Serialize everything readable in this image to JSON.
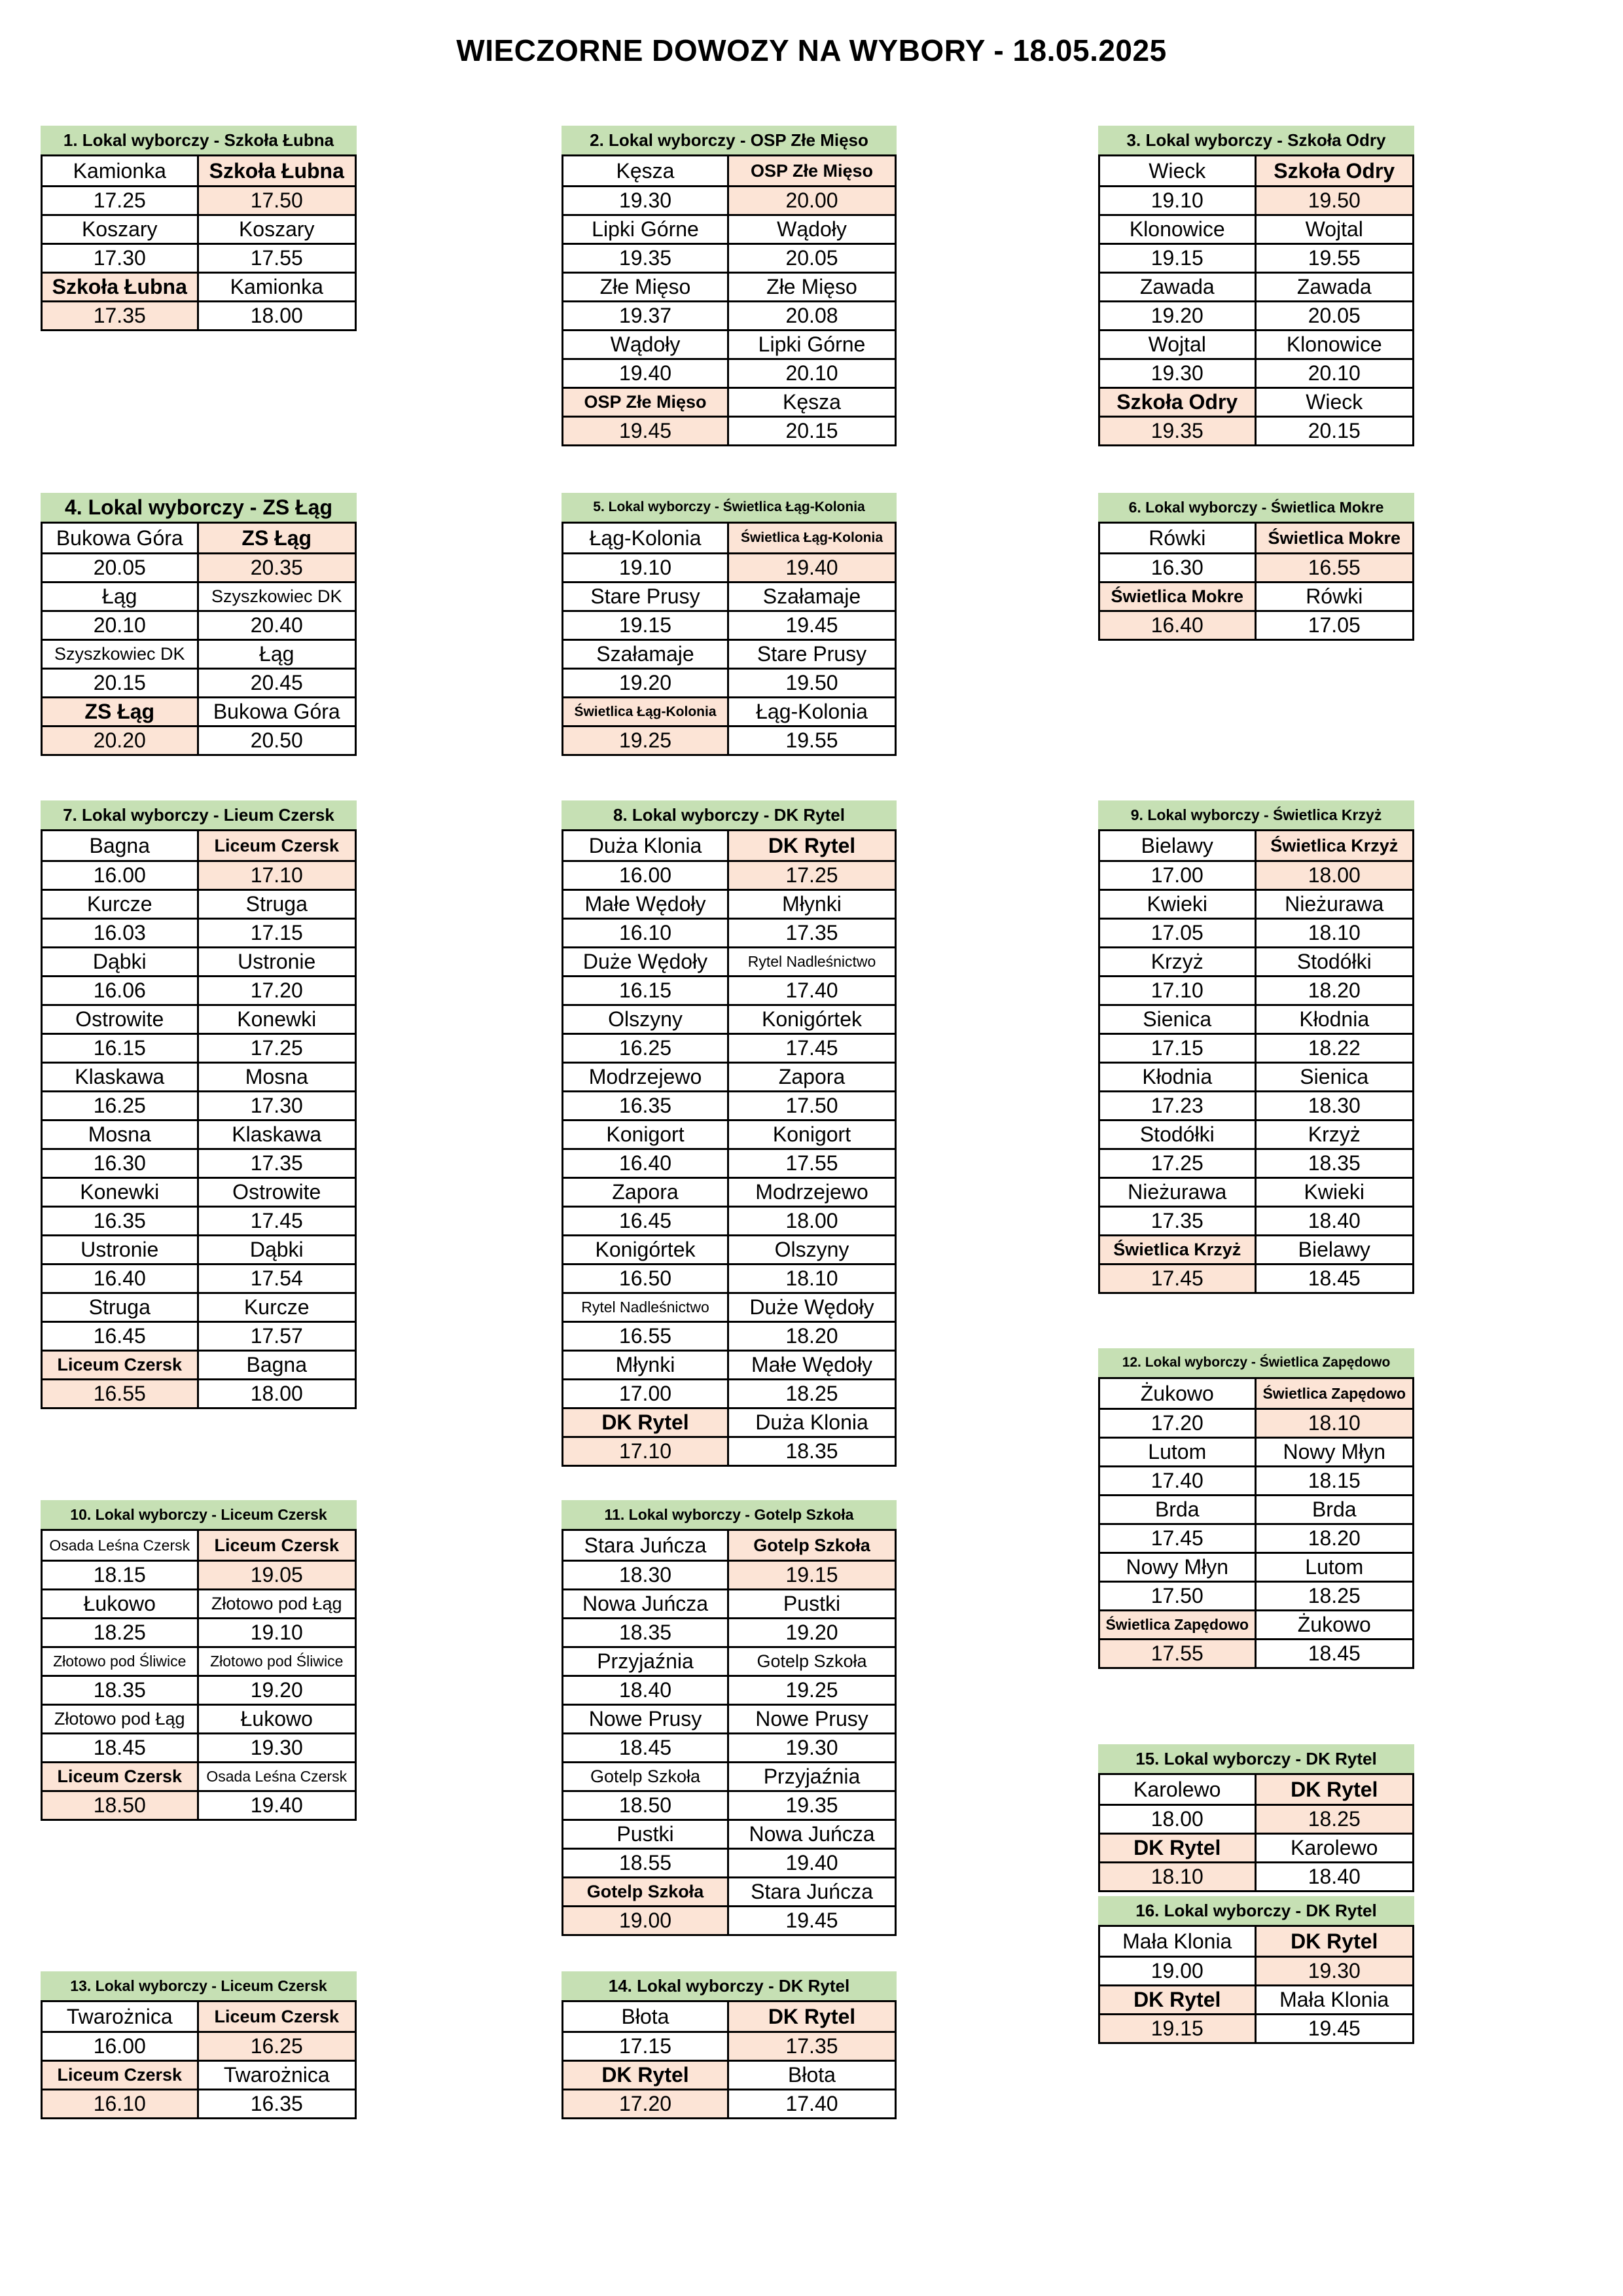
{
  "page": {
    "title": "WIECZORNE DOWOZY NA WYBORY - 18.05.2025"
  },
  "colors": {
    "header_green": "#c6e0b4",
    "highlight_pink": "#fce4d6",
    "border": "#000000",
    "text": "#000000",
    "background": "#ffffff"
  },
  "tables": [
    {
      "id": 1,
      "title": "1. Lokal wyborczy - Szkoła Łubna",
      "left": [
        {
          "name": "Kamionka",
          "time": "17.25",
          "hl": false
        },
        {
          "name": "Koszary",
          "time": "17.30",
          "hl": false
        },
        {
          "name": "Szkoła Łubna",
          "time": "17.35",
          "hl": true
        }
      ],
      "right": [
        {
          "name": "Szkoła Łubna",
          "time": "17.50",
          "hl": true
        },
        {
          "name": "Koszary",
          "time": "17.55",
          "hl": false
        },
        {
          "name": "Kamionka",
          "time": "18.00",
          "hl": false
        }
      ]
    },
    {
      "id": 2,
      "title": "2. Lokal wyborczy - OSP Złe Mięso",
      "left": [
        {
          "name": "Kęsza",
          "time": "19.30",
          "hl": false
        },
        {
          "name": "Lipki Górne",
          "time": "19.35",
          "hl": false
        },
        {
          "name": "Złe Mięso",
          "time": "19.37",
          "hl": false
        },
        {
          "name": "Wądoły",
          "time": "19.40",
          "hl": false
        },
        {
          "name": "OSP Złe Mięso",
          "time": "19.45",
          "hl": true
        }
      ],
      "right": [
        {
          "name": "OSP Złe Mięso",
          "time": "20.00",
          "hl": true
        },
        {
          "name": "Wądoły",
          "time": "20.05",
          "hl": false
        },
        {
          "name": "Złe Mięso",
          "time": "20.08",
          "hl": false
        },
        {
          "name": "Lipki Górne",
          "time": "20.10",
          "hl": false
        },
        {
          "name": "Kęsza",
          "time": "20.15",
          "hl": false
        }
      ]
    },
    {
      "id": 3,
      "title": "3. Lokal wyborczy - Szkoła Odry",
      "left": [
        {
          "name": "Wieck",
          "time": "19.10",
          "hl": false
        },
        {
          "name": "Klonowice",
          "time": "19.15",
          "hl": false
        },
        {
          "name": "Zawada",
          "time": "19.20",
          "hl": false
        },
        {
          "name": "Wojtal",
          "time": "19.30",
          "hl": false
        },
        {
          "name": "Szkoła Odry",
          "time": "19.35",
          "hl": true
        }
      ],
      "right": [
        {
          "name": "Szkoła Odry",
          "time": "19.50",
          "hl": true
        },
        {
          "name": "Wojtal",
          "time": "19.55",
          "hl": false
        },
        {
          "name": "Zawada",
          "time": "20.05",
          "hl": false
        },
        {
          "name": "Klonowice",
          "time": "20.10",
          "hl": false
        },
        {
          "name": "Wieck",
          "time": "20.15",
          "hl": false
        }
      ]
    },
    {
      "id": 4,
      "title": "4. Lokal wyborczy - ZS Łąg",
      "left": [
        {
          "name": "Bukowa Góra",
          "time": "20.05",
          "hl": false
        },
        {
          "name": "Łąg",
          "time": "20.10",
          "hl": false
        },
        {
          "name": "Szyszkowiec DK",
          "time": "20.15",
          "hl": false
        },
        {
          "name": "ZS Łąg",
          "time": "20.20",
          "hl": true
        }
      ],
      "right": [
        {
          "name": "ZS Łąg",
          "time": "20.35",
          "hl": true
        },
        {
          "name": "Szyszkowiec DK",
          "time": "20.40",
          "hl": false
        },
        {
          "name": "Łąg",
          "time": "20.45",
          "hl": false
        },
        {
          "name": "Bukowa Góra",
          "time": "20.50",
          "hl": false
        }
      ]
    },
    {
      "id": 5,
      "title": "5. Lokal wyborczy - Świetlica Łąg-Kolonia",
      "left": [
        {
          "name": "Łąg-Kolonia",
          "time": "19.10",
          "hl": false
        },
        {
          "name": "Stare Prusy",
          "time": "19.15",
          "hl": false
        },
        {
          "name": "Szałamaje",
          "time": "19.20",
          "hl": false
        },
        {
          "name": "Świetlica Łąg-Kolonia",
          "time": "19.25",
          "hl": true
        }
      ],
      "right": [
        {
          "name": "Świetlica Łąg-Kolonia",
          "time": "19.40",
          "hl": true
        },
        {
          "name": "Szałamaje",
          "time": "19.45",
          "hl": false
        },
        {
          "name": "Stare Prusy",
          "time": "19.50",
          "hl": false
        },
        {
          "name": "Łąg-Kolonia",
          "time": "19.55",
          "hl": false
        }
      ]
    },
    {
      "id": 6,
      "title": "6. Lokal wyborczy - Świetlica Mokre",
      "left": [
        {
          "name": "Rówki",
          "time": "16.30",
          "hl": false
        },
        {
          "name": "Świetlica Mokre",
          "time": "16.40",
          "hl": true
        }
      ],
      "right": [
        {
          "name": "Świetlica Mokre",
          "time": "16.55",
          "hl": true
        },
        {
          "name": "Rówki",
          "time": "17.05",
          "hl": false
        }
      ]
    },
    {
      "id": 7,
      "title": "7. Lokal wyborczy - Lieum Czersk",
      "left": [
        {
          "name": "Bagna",
          "time": "16.00",
          "hl": false
        },
        {
          "name": "Kurcze",
          "time": "16.03",
          "hl": false
        },
        {
          "name": "Dąbki",
          "time": "16.06",
          "hl": false
        },
        {
          "name": "Ostrowite",
          "time": "16.15",
          "hl": false
        },
        {
          "name": "Klaskawa",
          "time": "16.25",
          "hl": false
        },
        {
          "name": "Mosna",
          "time": "16.30",
          "hl": false
        },
        {
          "name": "Konewki",
          "time": "16.35",
          "hl": false
        },
        {
          "name": "Ustronie",
          "time": "16.40",
          "hl": false
        },
        {
          "name": "Struga",
          "time": "16.45",
          "hl": false
        },
        {
          "name": "Liceum Czersk",
          "time": "16.55",
          "hl": true
        }
      ],
      "right": [
        {
          "name": "Liceum Czersk",
          "time": "17.10",
          "hl": true
        },
        {
          "name": "Struga",
          "time": "17.15",
          "hl": false
        },
        {
          "name": "Ustronie",
          "time": "17.20",
          "hl": false
        },
        {
          "name": "Konewki",
          "time": "17.25",
          "hl": false
        },
        {
          "name": "Mosna",
          "time": "17.30",
          "hl": false
        },
        {
          "name": "Klaskawa",
          "time": "17.35",
          "hl": false
        },
        {
          "name": "Ostrowite",
          "time": "17.45",
          "hl": false
        },
        {
          "name": "Dąbki",
          "time": "17.54",
          "hl": false
        },
        {
          "name": "Kurcze",
          "time": "17.57",
          "hl": false
        },
        {
          "name": "Bagna",
          "time": "18.00",
          "hl": false
        }
      ]
    },
    {
      "id": 8,
      "title": "8. Lokal wyborczy - DK Rytel",
      "left": [
        {
          "name": "Duża Klonia",
          "time": "16.00",
          "hl": false
        },
        {
          "name": "Małe Wędoły",
          "time": "16.10",
          "hl": false
        },
        {
          "name": "Duże Wędoły",
          "time": "16.15",
          "hl": false
        },
        {
          "name": "Olszyny",
          "time": "16.25",
          "hl": false
        },
        {
          "name": "Modrzejewo",
          "time": "16.35",
          "hl": false
        },
        {
          "name": "Konigort",
          "time": "16.40",
          "hl": false
        },
        {
          "name": "Zapora",
          "time": "16.45",
          "hl": false
        },
        {
          "name": "Konigórtek",
          "time": "16.50",
          "hl": false
        },
        {
          "name": "Rytel Nadleśnictwo",
          "time": "16.55",
          "hl": false
        },
        {
          "name": "Młynki",
          "time": "17.00",
          "hl": false
        },
        {
          "name": "DK Rytel",
          "time": "17.10",
          "hl": true
        }
      ],
      "right": [
        {
          "name": "DK Rytel",
          "time": "17.25",
          "hl": true
        },
        {
          "name": "Młynki",
          "time": "17.35",
          "hl": false
        },
        {
          "name": "Rytel Nadleśnictwo",
          "time": "17.40",
          "hl": false
        },
        {
          "name": "Konigórtek",
          "time": "17.45",
          "hl": false
        },
        {
          "name": "Zapora",
          "time": "17.50",
          "hl": false
        },
        {
          "name": "Konigort",
          "time": "17.55",
          "hl": false
        },
        {
          "name": "Modrzejewo",
          "time": "18.00",
          "hl": false
        },
        {
          "name": "Olszyny",
          "time": "18.10",
          "hl": false
        },
        {
          "name": "Duże Wędoły",
          "time": "18.20",
          "hl": false
        },
        {
          "name": "Małe Wędoły",
          "time": "18.25",
          "hl": false
        },
        {
          "name": "Duża Klonia",
          "time": "18.35",
          "hl": false
        }
      ]
    },
    {
      "id": 9,
      "title": "9. Lokal wyborczy - Świetlica Krzyż",
      "left": [
        {
          "name": "Bielawy",
          "time": "17.00",
          "hl": false
        },
        {
          "name": "Kwieki",
          "time": "17.05",
          "hl": false
        },
        {
          "name": "Krzyż",
          "time": "17.10",
          "hl": false
        },
        {
          "name": "Sienica",
          "time": "17.15",
          "hl": false
        },
        {
          "name": "Kłodnia",
          "time": "17.23",
          "hl": false
        },
        {
          "name": "Stodółki",
          "time": "17.25",
          "hl": false
        },
        {
          "name": "Nieżurawa",
          "time": "17.35",
          "hl": false
        },
        {
          "name": "Świetlica Krzyż",
          "time": "17.45",
          "hl": true
        }
      ],
      "right": [
        {
          "name": "Świetlica Krzyż",
          "time": "18.00",
          "hl": true
        },
        {
          "name": "Nieżurawa",
          "time": "18.10",
          "hl": false
        },
        {
          "name": "Stodółki",
          "time": "18.20",
          "hl": false
        },
        {
          "name": "Kłodnia",
          "time": "18.22",
          "hl": false
        },
        {
          "name": "Sienica",
          "time": "18.30",
          "hl": false
        },
        {
          "name": "Krzyż",
          "time": "18.35",
          "hl": false
        },
        {
          "name": "Kwieki",
          "time": "18.40",
          "hl": false
        },
        {
          "name": "Bielawy",
          "time": "18.45",
          "hl": false
        }
      ]
    },
    {
      "id": 10,
      "title": "10. Lokal wyborczy - Liceum Czersk",
      "left": [
        {
          "name": "Osada Leśna Czersk",
          "time": "18.15",
          "hl": false
        },
        {
          "name": "Łukowo",
          "time": "18.25",
          "hl": false
        },
        {
          "name": "Złotowo pod Śliwice",
          "time": "18.35",
          "hl": false
        },
        {
          "name": "Złotowo pod Łąg",
          "time": "18.45",
          "hl": false
        },
        {
          "name": "Liceum Czersk",
          "time": "18.50",
          "hl": true
        }
      ],
      "right": [
        {
          "name": "Liceum Czersk",
          "time": "19.05",
          "hl": true
        },
        {
          "name": "Złotowo pod Łąg",
          "time": "19.10",
          "hl": false
        },
        {
          "name": "Złotowo pod Śliwice",
          "time": "19.20",
          "hl": false
        },
        {
          "name": "Łukowo",
          "time": "19.30",
          "hl": false
        },
        {
          "name": "Osada Leśna Czersk",
          "time": "19.40",
          "hl": false
        }
      ]
    },
    {
      "id": 11,
      "title": "11. Lokal wyborczy - Gotelp Szkoła",
      "left": [
        {
          "name": "Stara Juńcza",
          "time": "18.30",
          "hl": false
        },
        {
          "name": "Nowa Juńcza",
          "time": "18.35",
          "hl": false
        },
        {
          "name": "Przyjaźnia",
          "time": "18.40",
          "hl": false
        },
        {
          "name": "Nowe Prusy",
          "time": "18.45",
          "hl": false
        },
        {
          "name": "Gotelp Szkoła",
          "time": "18.50",
          "hl": false
        },
        {
          "name": "Pustki",
          "time": "18.55",
          "hl": false
        },
        {
          "name": "Gotelp Szkoła",
          "time": "19.00",
          "hl": true
        }
      ],
      "right": [
        {
          "name": "Gotelp Szkoła",
          "time": "19.15",
          "hl": true
        },
        {
          "name": "Pustki",
          "time": "19.20",
          "hl": false
        },
        {
          "name": "Gotelp Szkoła",
          "time": "19.25",
          "hl": false
        },
        {
          "name": "Nowe Prusy",
          "time": "19.30",
          "hl": false
        },
        {
          "name": "Przyjaźnia",
          "time": "19.35",
          "hl": false
        },
        {
          "name": "Nowa Juńcza",
          "time": "19.40",
          "hl": false
        },
        {
          "name": "Stara Juńcza",
          "time": "19.45",
          "hl": false
        }
      ]
    },
    {
      "id": 12,
      "title": "12. Lokal wyborczy - Świetlica Zapędowo",
      "left": [
        {
          "name": "Żukowo",
          "time": "17.20",
          "hl": false
        },
        {
          "name": "Lutom",
          "time": "17.40",
          "hl": false
        },
        {
          "name": "Brda",
          "time": "17.45",
          "hl": false
        },
        {
          "name": "Nowy Młyn",
          "time": "17.50",
          "hl": false
        },
        {
          "name": "Świetlica Zapędowo",
          "time": "17.55",
          "hl": true
        }
      ],
      "right": [
        {
          "name": "Świetlica Zapędowo",
          "time": "18.10",
          "hl": true
        },
        {
          "name": "Nowy Młyn",
          "time": "18.15",
          "hl": false
        },
        {
          "name": "Brda",
          "time": "18.20",
          "hl": false
        },
        {
          "name": "Lutom",
          "time": "18.25",
          "hl": false
        },
        {
          "name": "Żukowo",
          "time": "18.45",
          "hl": false
        }
      ]
    },
    {
      "id": 13,
      "title": "13. Lokal wyborczy - Liceum Czersk",
      "left": [
        {
          "name": "Twarożnica",
          "time": "16.00",
          "hl": false
        },
        {
          "name": "Liceum Czersk",
          "time": "16.10",
          "hl": true
        }
      ],
      "right": [
        {
          "name": "Liceum Czersk",
          "time": "16.25",
          "hl": true
        },
        {
          "name": "Twarożnica",
          "time": "16.35",
          "hl": false
        }
      ]
    },
    {
      "id": 14,
      "title": "14. Lokal wyborczy - DK Rytel",
      "left": [
        {
          "name": "Błota",
          "time": "17.15",
          "hl": false
        },
        {
          "name": "DK Rytel",
          "time": "17.20",
          "hl": true
        }
      ],
      "right": [
        {
          "name": "DK Rytel",
          "time": "17.35",
          "hl": true
        },
        {
          "name": "Błota",
          "time": "17.40",
          "hl": false
        }
      ]
    },
    {
      "id": 15,
      "title": "15. Lokal wyborczy - DK Rytel",
      "left": [
        {
          "name": "Karolewo",
          "time": "18.00",
          "hl": false
        },
        {
          "name": "DK Rytel",
          "time": "18.10",
          "hl": true
        }
      ],
      "right": [
        {
          "name": "DK Rytel",
          "time": "18.25",
          "hl": true
        },
        {
          "name": "Karolewo",
          "time": "18.40",
          "hl": false
        }
      ]
    },
    {
      "id": 16,
      "title": "16. Lokal wyborczy - DK Rytel",
      "left": [
        {
          "name": "Mała Klonia",
          "time": "19.00",
          "hl": false
        },
        {
          "name": "DK Rytel",
          "time": "19.15",
          "hl": true
        }
      ],
      "right": [
        {
          "name": "DK Rytel",
          "time": "19.30",
          "hl": true
        },
        {
          "name": "Mała Klonia",
          "time": "19.45",
          "hl": false
        }
      ]
    }
  ]
}
